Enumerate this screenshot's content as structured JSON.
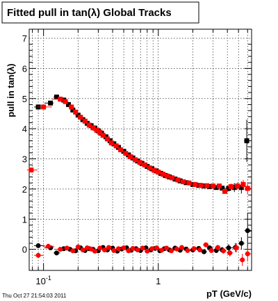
{
  "title": "Fitted pull in tan(λ)  Global Tracks",
  "timestamp": "Thu Oct 27 21:54:03 2011",
  "chart_data": {
    "type": "scatter",
    "title": "Fitted pull in tan(λ)  Global Tracks",
    "xlabel": "pT (GeV/c)",
    "ylabel": "pull in tan(λ)",
    "xscale": "log",
    "xlim": [
      0.075,
      6.5
    ],
    "ylim": [
      -0.7,
      7.3
    ],
    "grid": true,
    "x_major_ticks": [
      {
        "value": 0.1,
        "base": "10",
        "exp": "-1"
      },
      {
        "value": 1,
        "base": "1",
        "exp": ""
      }
    ],
    "y_ticks": [
      0,
      1,
      2,
      3,
      4,
      5,
      6,
      7
    ],
    "colors": {
      "black": "#000000",
      "red": "#ff0000"
    },
    "series": [
      {
        "marker": "square",
        "color": "#000000",
        "x": [
          0.09,
          0.115,
          0.13,
          0.15,
          0.165,
          0.18,
          0.2,
          0.22,
          0.24,
          0.26,
          0.28,
          0.3,
          0.32,
          0.35,
          0.38,
          0.41,
          0.45,
          0.5,
          0.55,
          0.6,
          0.66,
          0.72,
          0.8,
          0.88,
          0.96,
          1.05,
          1.15,
          1.25,
          1.4,
          1.55,
          1.75,
          2.0,
          2.25,
          2.5,
          2.8,
          3.2,
          3.6,
          4.1,
          4.6,
          5.3,
          5.9
        ],
        "y": [
          4.72,
          4.85,
          5.05,
          4.95,
          4.8,
          4.62,
          4.45,
          4.3,
          4.18,
          4.1,
          4.02,
          3.93,
          3.85,
          3.73,
          3.6,
          3.5,
          3.38,
          3.25,
          3.13,
          3.03,
          2.93,
          2.85,
          2.75,
          2.67,
          2.6,
          2.52,
          2.45,
          2.4,
          2.33,
          2.27,
          2.21,
          2.15,
          2.12,
          2.1,
          2.08,
          2.05,
          2.03,
          2.02,
          2.05,
          2.05,
          3.6
        ],
        "err": [
          0.05,
          0.05,
          0.05,
          0.05,
          0.05,
          0.05,
          0.05,
          0.05,
          0.04,
          0.04,
          0.04,
          0.04,
          0.04,
          0.04,
          0.04,
          0.04,
          0.04,
          0.04,
          0.04,
          0.04,
          0.04,
          0.04,
          0.04,
          0.04,
          0.04,
          0.04,
          0.04,
          0.04,
          0.04,
          0.05,
          0.05,
          0.05,
          0.05,
          0.06,
          0.06,
          0.07,
          0.08,
          0.1,
          0.15,
          0.2,
          0.7
        ]
      },
      {
        "marker": "square",
        "color": "#ff0000",
        "x": [
          0.078,
          0.1,
          0.14,
          0.155,
          0.175,
          0.19,
          0.21,
          0.23,
          0.25,
          0.27,
          0.29,
          0.31,
          0.33,
          0.36,
          0.39,
          0.43,
          0.47,
          0.52,
          0.57,
          0.63,
          0.69,
          0.76,
          0.84,
          0.92,
          1.0,
          1.1,
          1.2,
          1.32,
          1.48,
          1.65,
          1.85,
          2.1,
          2.35,
          2.65,
          3.0,
          3.4,
          3.8,
          4.3,
          4.9,
          5.5,
          6.0
        ],
        "y": [
          2.63,
          4.72,
          4.98,
          4.9,
          4.72,
          4.55,
          4.38,
          4.25,
          4.12,
          4.03,
          3.95,
          3.88,
          3.78,
          3.66,
          3.53,
          3.43,
          3.3,
          3.18,
          3.07,
          2.97,
          2.88,
          2.8,
          2.7,
          2.62,
          2.56,
          2.49,
          2.43,
          2.37,
          2.3,
          2.24,
          2.2,
          2.15,
          2.12,
          2.11,
          2.1,
          2.1,
          1.92,
          2.08,
          2.1,
          2.15,
          2.02
        ],
        "err": [
          0.05,
          0.05,
          0.05,
          0.05,
          0.05,
          0.05,
          0.05,
          0.04,
          0.04,
          0.04,
          0.04,
          0.04,
          0.04,
          0.04,
          0.04,
          0.04,
          0.04,
          0.04,
          0.04,
          0.04,
          0.04,
          0.04,
          0.04,
          0.04,
          0.04,
          0.04,
          0.04,
          0.04,
          0.04,
          0.04,
          0.05,
          0.05,
          0.05,
          0.06,
          0.06,
          0.07,
          0.08,
          0.1,
          0.12,
          0.15,
          0.2
        ]
      },
      {
        "marker": "circle",
        "color": "#000000",
        "x": [
          0.09,
          0.115,
          0.13,
          0.15,
          0.17,
          0.19,
          0.21,
          0.23,
          0.25,
          0.27,
          0.3,
          0.33,
          0.36,
          0.4,
          0.44,
          0.48,
          0.53,
          0.58,
          0.64,
          0.7,
          0.78,
          0.86,
          0.94,
          1.03,
          1.13,
          1.25,
          1.4,
          1.55,
          1.75,
          2.0,
          2.25,
          2.5,
          2.8,
          3.2,
          3.6,
          4.1,
          4.7,
          5.3,
          6.0
        ],
        "y": [
          0.12,
          0.05,
          -0.12,
          0.02,
          0.0,
          -0.05,
          0.05,
          -0.04,
          0.02,
          0.0,
          -0.05,
          0.06,
          -0.02,
          0.04,
          -0.06,
          0.01,
          0.05,
          -0.03,
          0.02,
          -0.04,
          0.05,
          -0.02,
          0.03,
          -0.05,
          0.02,
          -0.02,
          0.04,
          -0.03,
          0.01,
          -0.02,
          0.03,
          -0.08,
          0.05,
          -0.04,
          -0.02,
          0.05,
          0.06,
          0.2,
          0.62
        ],
        "err": [
          0.05,
          0.05,
          0.05,
          0.05,
          0.05,
          0.05,
          0.05,
          0.04,
          0.04,
          0.04,
          0.04,
          0.04,
          0.04,
          0.04,
          0.04,
          0.04,
          0.04,
          0.04,
          0.04,
          0.04,
          0.04,
          0.04,
          0.04,
          0.04,
          0.04,
          0.04,
          0.04,
          0.05,
          0.05,
          0.05,
          0.06,
          0.06,
          0.07,
          0.08,
          0.1,
          0.12,
          0.15,
          0.2,
          0.6
        ]
      },
      {
        "marker": "circle",
        "color": "#ff0000",
        "x": [
          0.09,
          0.11,
          0.14,
          0.16,
          0.18,
          0.2,
          0.22,
          0.24,
          0.26,
          0.28,
          0.31,
          0.34,
          0.37,
          0.41,
          0.45,
          0.5,
          0.55,
          0.6,
          0.66,
          0.73,
          0.8,
          0.88,
          0.97,
          1.07,
          1.18,
          1.3,
          1.45,
          1.6,
          1.8,
          2.05,
          2.3,
          2.6,
          2.9,
          3.3,
          3.7,
          4.2,
          4.8,
          5.4,
          6.0
        ],
        "y": [
          -0.2,
          0.1,
          0.0,
          0.04,
          -0.05,
          0.08,
          -0.02,
          0.05,
          0.01,
          -0.06,
          0.04,
          -0.02,
          0.06,
          -0.04,
          0.02,
          0.05,
          -0.05,
          0.03,
          -0.02,
          0.04,
          -0.06,
          0.02,
          0.05,
          -0.03,
          0.04,
          -0.05,
          0.01,
          0.06,
          -0.04,
          0.02,
          -0.02,
          0.15,
          -0.04,
          0.06,
          -0.05,
          -0.12,
          0.05,
          -0.35,
          -0.15
        ],
        "err": [
          0.05,
          0.05,
          0.05,
          0.05,
          0.05,
          0.05,
          0.05,
          0.04,
          0.04,
          0.04,
          0.04,
          0.04,
          0.04,
          0.04,
          0.04,
          0.04,
          0.04,
          0.04,
          0.04,
          0.04,
          0.04,
          0.04,
          0.04,
          0.04,
          0.04,
          0.04,
          0.04,
          0.05,
          0.05,
          0.05,
          0.06,
          0.06,
          0.07,
          0.08,
          0.1,
          0.12,
          0.15,
          0.2,
          0.25
        ]
      }
    ]
  }
}
